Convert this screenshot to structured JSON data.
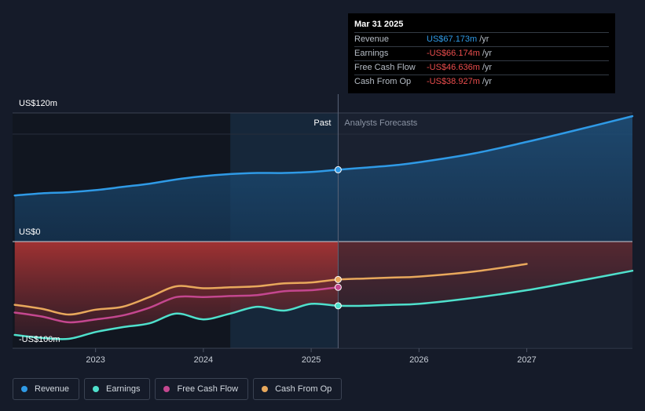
{
  "tooltip": {
    "date": "Mar 31 2025",
    "rows": [
      {
        "label": "Revenue",
        "value": "US$67.173m",
        "unit": "/yr",
        "color": "#2f9ae6"
      },
      {
        "label": "Earnings",
        "value": "-US$66.174m",
        "unit": "/yr",
        "color": "#ea4d4d"
      },
      {
        "label": "Free Cash Flow",
        "value": "-US$46.636m",
        "unit": "/yr",
        "color": "#ea4d4d"
      },
      {
        "label": "Cash From Op",
        "value": "-US$38.927m",
        "unit": "/yr",
        "color": "#ea4d4d"
      }
    ]
  },
  "legend": [
    {
      "label": "Revenue",
      "color": "#2f9ae6"
    },
    {
      "label": "Earnings",
      "color": "#4fe0cc"
    },
    {
      "label": "Free Cash Flow",
      "color": "#c4478f"
    },
    {
      "label": "Cash From Op",
      "color": "#e8a85c"
    }
  ],
  "chart_data": {
    "type": "line",
    "y_tick_labels": [
      "US$120m",
      "US$0",
      "-US$100m"
    ],
    "y_ticks": [
      120,
      0,
      -100
    ],
    "ylim": [
      -100,
      120
    ],
    "xlim": [
      2022.23,
      2027.98
    ],
    "x_tick_labels": [
      "2023",
      "2024",
      "2025",
      "2026",
      "2027"
    ],
    "x_ticks": [
      2023,
      2024,
      2025,
      2026,
      2027
    ],
    "past_label": "Past",
    "forecast_label": "Analysts Forecasts",
    "forecast_start": 2025.25,
    "highlight_start": 2024.25,
    "series": [
      {
        "name": "Revenue",
        "color": "#2f9ae6",
        "x": [
          2022.25,
          2022.5,
          2022.75,
          2023.0,
          2023.25,
          2023.5,
          2023.75,
          2024.0,
          2024.25,
          2024.5,
          2024.75,
          2025.0,
          2025.25,
          2025.5,
          2025.75,
          2026.0,
          2026.5,
          2027.0,
          2027.5,
          2027.98
        ],
        "y": [
          43,
          45,
          46,
          48,
          51,
          54,
          58,
          61,
          63,
          64,
          64,
          65,
          67,
          69,
          71,
          74,
          82,
          93,
          105,
          117
        ]
      },
      {
        "name": "Earnings",
        "color": "#4fe0cc",
        "x": [
          2022.25,
          2022.5,
          2022.75,
          2023.0,
          2023.25,
          2023.5,
          2023.75,
          2024.0,
          2024.25,
          2024.5,
          2024.75,
          2025.0,
          2025.25,
          2025.5,
          2025.75,
          2026.0,
          2026.5,
          2027.0,
          2027.5,
          2027.98
        ],
        "y": [
          -96,
          -99,
          -100,
          -93,
          -88,
          -84,
          -74,
          -80,
          -74,
          -67,
          -71,
          -64,
          -66,
          -66,
          -65,
          -64,
          -58,
          -50,
          -40,
          -30
        ]
      },
      {
        "name": "Free Cash Flow",
        "color": "#c4478f",
        "x": [
          2022.25,
          2022.5,
          2022.75,
          2023.0,
          2023.25,
          2023.5,
          2023.75,
          2024.0,
          2024.25,
          2024.5,
          2024.75,
          2025.0,
          2025.25
        ],
        "y": [
          -73,
          -77,
          -83,
          -80,
          -76,
          -68,
          -57,
          -57,
          -56,
          -55,
          -51,
          -50,
          -47
        ]
      },
      {
        "name": "Cash From Op",
        "color": "#e8a85c",
        "x": [
          2022.25,
          2022.5,
          2022.75,
          2023.0,
          2023.25,
          2023.5,
          2023.75,
          2024.0,
          2024.25,
          2024.5,
          2024.75,
          2025.0,
          2025.25,
          2025.5,
          2025.75,
          2026.0,
          2026.5,
          2027.0
        ],
        "y": [
          -65,
          -69,
          -75,
          -70,
          -67,
          -57,
          -46,
          -48,
          -47,
          -46,
          -43,
          -42,
          -39,
          -38,
          -37,
          -36,
          -31,
          -23
        ]
      }
    ]
  }
}
